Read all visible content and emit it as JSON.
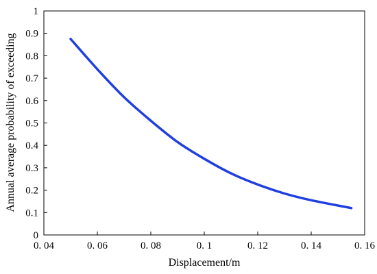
{
  "chart_data": {
    "type": "line",
    "title": "",
    "xlabel": "Displacement/m",
    "ylabel": "Annual average probability of exceeding",
    "xlim": [
      0.04,
      0.16
    ],
    "ylim": [
      0,
      1
    ],
    "xticks": [
      0.04,
      0.06,
      0.08,
      0.1,
      0.12,
      0.14,
      0.16
    ],
    "xtick_labels": [
      "0. 04",
      "0. 06",
      "0. 08",
      "0. 1",
      "0. 12",
      "0. 14",
      "0. 16"
    ],
    "yticks": [
      0,
      0.1,
      0.2,
      0.3,
      0.4,
      0.5,
      0.6,
      0.7,
      0.8,
      0.9,
      1
    ],
    "ytick_labels": [
      "0",
      "0.1",
      "0.2",
      "0.3",
      "0.4",
      "0.5",
      "0.6",
      "0.7",
      "0.8",
      "0.9",
      "1"
    ],
    "grid": false,
    "legend": "none",
    "series": [
      {
        "color": "#1f3fe0",
        "x": [
          0.05,
          0.06,
          0.07,
          0.08,
          0.09,
          0.1,
          0.11,
          0.12,
          0.13,
          0.14,
          0.155
        ],
        "y": [
          0.875,
          0.74,
          0.615,
          0.51,
          0.415,
          0.34,
          0.275,
          0.225,
          0.185,
          0.155,
          0.12
        ]
      }
    ]
  }
}
